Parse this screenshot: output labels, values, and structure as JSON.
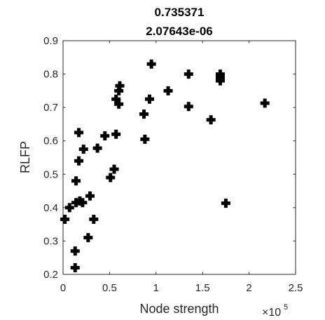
{
  "chart_data": {
    "type": "scatter",
    "title": [
      "0.735371",
      "2.07643e-06"
    ],
    "xlabel": "Node strength",
    "ylabel": "RLFP",
    "x_multiplier_base": "×10",
    "x_multiplier_exp": "5",
    "xlim": [
      0,
      2.5
    ],
    "ylim": [
      0.2,
      0.9
    ],
    "xticks": [
      0,
      0.5,
      1,
      1.5,
      2,
      2.5
    ],
    "xtick_labels": [
      "0",
      "0.5",
      "1",
      "1.5",
      "2",
      "2.5"
    ],
    "yticks": [
      0.2,
      0.3,
      0.4,
      0.5,
      0.6,
      0.7,
      0.8,
      0.9
    ],
    "ytick_labels": [
      "0.2",
      "0.3",
      "0.4",
      "0.5",
      "0.6",
      "0.7",
      "0.8",
      "0.9"
    ],
    "marker": "plus-filled",
    "color": "#000000",
    "points": [
      {
        "x": 0.02,
        "y": 0.365
      },
      {
        "x": 0.07,
        "y": 0.4
      },
      {
        "x": 0.13,
        "y": 0.22
      },
      {
        "x": 0.13,
        "y": 0.27
      },
      {
        "x": 0.14,
        "y": 0.48
      },
      {
        "x": 0.14,
        "y": 0.415
      },
      {
        "x": 0.17,
        "y": 0.54
      },
      {
        "x": 0.17,
        "y": 0.625
      },
      {
        "x": 0.18,
        "y": 0.42
      },
      {
        "x": 0.21,
        "y": 0.415
      },
      {
        "x": 0.22,
        "y": 0.575
      },
      {
        "x": 0.27,
        "y": 0.31
      },
      {
        "x": 0.29,
        "y": 0.435
      },
      {
        "x": 0.33,
        "y": 0.365
      },
      {
        "x": 0.37,
        "y": 0.578
      },
      {
        "x": 0.45,
        "y": 0.615
      },
      {
        "x": 0.51,
        "y": 0.49
      },
      {
        "x": 0.55,
        "y": 0.515
      },
      {
        "x": 0.57,
        "y": 0.62
      },
      {
        "x": 0.57,
        "y": 0.725
      },
      {
        "x": 0.6,
        "y": 0.71
      },
      {
        "x": 0.6,
        "y": 0.75
      },
      {
        "x": 0.61,
        "y": 0.765
      },
      {
        "x": 0.87,
        "y": 0.68
      },
      {
        "x": 0.88,
        "y": 0.605
      },
      {
        "x": 0.93,
        "y": 0.725
      },
      {
        "x": 0.95,
        "y": 0.83
      },
      {
        "x": 1.13,
        "y": 0.75
      },
      {
        "x": 1.35,
        "y": 0.8
      },
      {
        "x": 1.35,
        "y": 0.703
      },
      {
        "x": 1.59,
        "y": 0.663
      },
      {
        "x": 1.69,
        "y": 0.8
      },
      {
        "x": 1.69,
        "y": 0.79
      },
      {
        "x": 1.69,
        "y": 0.78
      },
      {
        "x": 1.75,
        "y": 0.413
      },
      {
        "x": 2.17,
        "y": 0.713
      }
    ]
  }
}
